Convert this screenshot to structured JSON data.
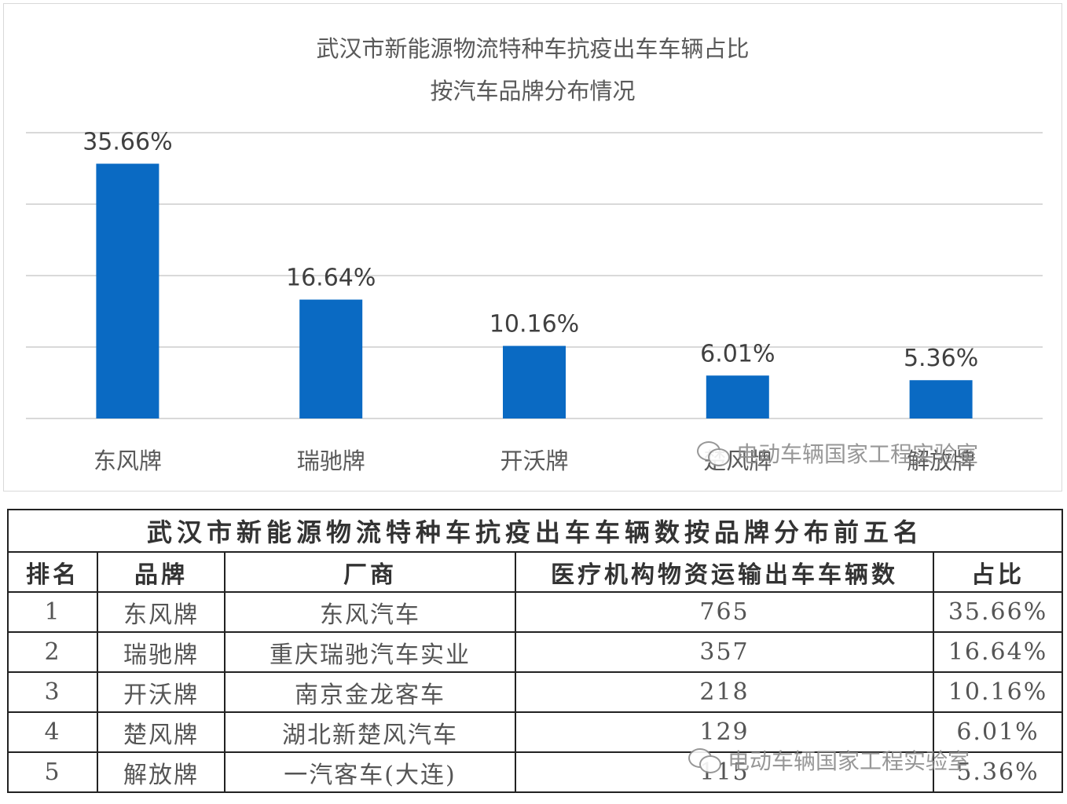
{
  "chart_data": {
    "type": "bar",
    "title_line1": "武汉市新能源物流特种车抗疫出车车辆占比",
    "title_line2": "按汽车品牌分布情况",
    "categories": [
      "东风牌",
      "瑞驰牌",
      "开沃牌",
      "楚风牌",
      "解放牌"
    ],
    "values": [
      35.66,
      16.64,
      10.16,
      6.01,
      5.36
    ],
    "data_labels": [
      "35.66%",
      "16.64%",
      "10.16%",
      "6.01%",
      "5.36%"
    ],
    "ylim": [
      0,
      40
    ],
    "grid": true,
    "bar_color": "#0a6ac3",
    "gridline_color": "#d9d9d9"
  },
  "watermark": {
    "text": "电动车辆国家工程实验室",
    "icon": "wechat-icon"
  },
  "table": {
    "title": "武汉市新能源物流特种车抗疫出车车辆数按品牌分布前五名",
    "headers": [
      "排名",
      "品牌",
      "厂商",
      "医疗机构物资运输出车车辆数",
      "占比"
    ],
    "rows": [
      [
        "1",
        "东风牌",
        "东风汽车",
        "765",
        "35.66%"
      ],
      [
        "2",
        "瑞驰牌",
        "重庆瑞驰汽车实业",
        "357",
        "16.64%"
      ],
      [
        "3",
        "开沃牌",
        "南京金龙客车",
        "218",
        "10.16%"
      ],
      [
        "4",
        "楚风牌",
        "湖北新楚风汽车",
        "129",
        "6.01%"
      ],
      [
        "5",
        "解放牌",
        "一汽客车(大连)",
        "115",
        "5.36%"
      ]
    ]
  }
}
